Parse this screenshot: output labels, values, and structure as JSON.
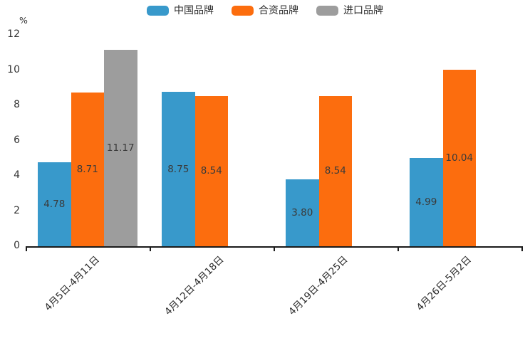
{
  "chart_data": {
    "type": "bar",
    "title": "",
    "unit_label": "%",
    "categories": [
      "4月5日-4月11日",
      "4月12日-4月18日",
      "4月19日-4月25日",
      "4月26日-5月2日"
    ],
    "series": [
      {
        "name": "中国品牌",
        "color": "#3899cb",
        "values": [
          4.78,
          8.75,
          3.8,
          4.99
        ]
      },
      {
        "name": "合资品牌",
        "color": "#fc6d0e",
        "values": [
          8.71,
          8.54,
          8.54,
          10.04
        ]
      },
      {
        "name": "进口品牌",
        "color": "#9d9d9d",
        "values": [
          11.17,
          null,
          null,
          null
        ]
      }
    ],
    "y_ticks": [
      0,
      2,
      4,
      6,
      8,
      10,
      12
    ],
    "ylim": [
      0,
      12
    ],
    "grid": false,
    "legend_position": "top",
    "value_label_decimals": 2,
    "colors": {
      "axis": "#1a1a1a",
      "tick_text": "#333333",
      "value_label_text": "#3a3a3a"
    }
  }
}
